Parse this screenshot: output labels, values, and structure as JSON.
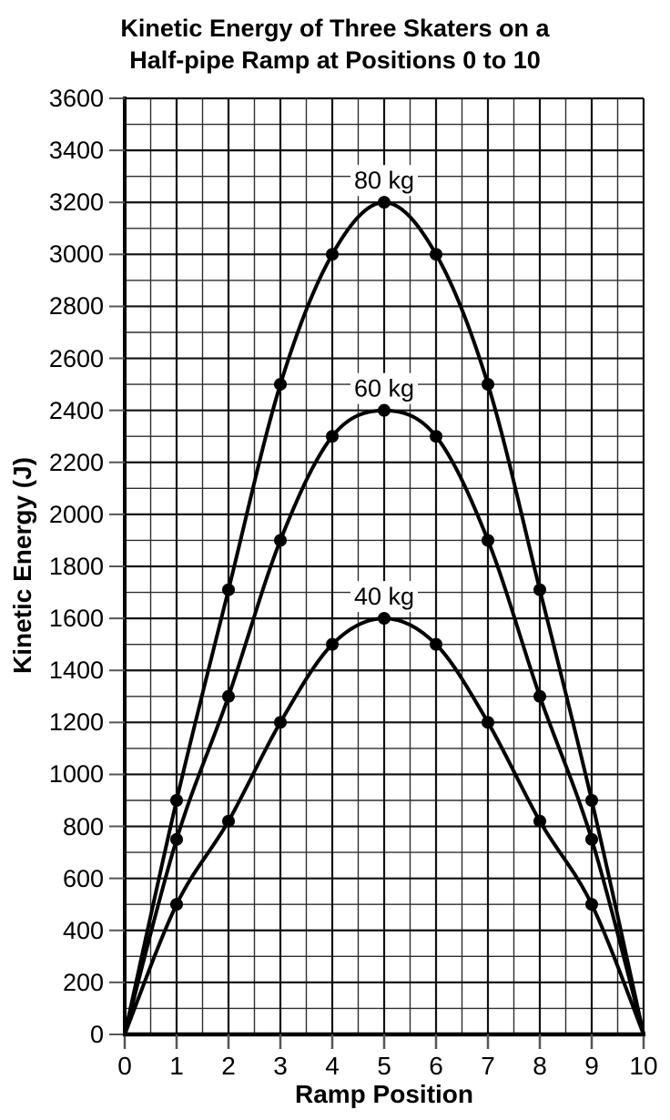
{
  "title": {
    "line1": "Kinetic Energy of Three Skaters on a",
    "line2": "Half-pipe Ramp at Positions 0 to 10"
  },
  "chart_data": {
    "type": "line",
    "title": "Kinetic Energy of Three Skaters on a Half-pipe Ramp at Positions 0 to 10",
    "xlabel": "Ramp Position",
    "ylabel": "Kinetic Energy (J)",
    "x": [
      0,
      1,
      2,
      3,
      4,
      5,
      6,
      7,
      8,
      9,
      10
    ],
    "series": [
      {
        "name": "80 kg",
        "values": [
          0,
          900,
          1710,
          2500,
          3000,
          3200,
          3000,
          2500,
          1710,
          900,
          0
        ]
      },
      {
        "name": "60 kg",
        "values": [
          0,
          750,
          1300,
          1900,
          2300,
          2400,
          2300,
          1900,
          1300,
          750,
          0
        ]
      },
      {
        "name": "40 kg",
        "values": [
          0,
          500,
          820,
          1200,
          1500,
          1600,
          1500,
          1200,
          820,
          500,
          0
        ]
      }
    ],
    "annotations": [
      "80 kg",
      "60 kg",
      "40 kg"
    ],
    "xlim": [
      0,
      10
    ],
    "ylim": [
      0,
      3600
    ],
    "xticks": [
      0,
      1,
      2,
      3,
      4,
      5,
      6,
      7,
      8,
      9,
      10
    ],
    "yticks": [
      0,
      200,
      400,
      600,
      800,
      1000,
      1200,
      1400,
      1600,
      1800,
      2000,
      2200,
      2400,
      2600,
      2800,
      3000,
      3200,
      3400,
      3600
    ],
    "x_minor_step": 0.5,
    "y_minor_step": 100,
    "grid": true,
    "legend_position": "inline-labels-above-peaks",
    "colors": {
      "line": "#000000",
      "marker": "#000000",
      "grid_major": "#111111",
      "grid_minor": "#2e2e2e",
      "axis": "#000000",
      "tick": "#555555",
      "background": "#ffffff",
      "text": "#000000"
    }
  }
}
